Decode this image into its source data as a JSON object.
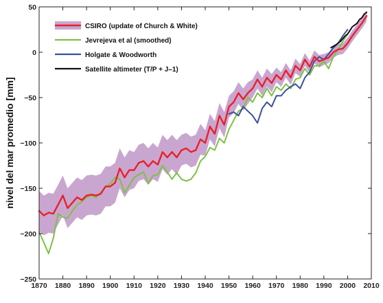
{
  "chart_data": {
    "type": "line",
    "title": "",
    "xlabel": "",
    "ylabel": "nivel del mar promedio [mm]",
    "xlim": [
      1870,
      2010
    ],
    "ylim": [
      -250,
      50
    ],
    "xticks": [
      1870,
      1880,
      1890,
      1900,
      1910,
      1920,
      1930,
      1940,
      1950,
      1960,
      1970,
      1980,
      1990,
      2000,
      2010
    ],
    "yticks": [
      -250,
      -200,
      -150,
      -100,
      -50,
      0,
      50
    ],
    "grid": false,
    "legend_position": "top-left",
    "series": [
      {
        "name": "CSIRO (update of Church & White)",
        "color": "#e8202a",
        "band_color": "#c9a6cf",
        "x": [
          1870,
          1872,
          1874,
          1876,
          1878,
          1880,
          1882,
          1884,
          1886,
          1888,
          1890,
          1892,
          1894,
          1896,
          1898,
          1900,
          1902,
          1904,
          1906,
          1908,
          1910,
          1912,
          1914,
          1916,
          1918,
          1920,
          1922,
          1924,
          1926,
          1928,
          1930,
          1932,
          1934,
          1936,
          1938,
          1940,
          1942,
          1944,
          1946,
          1948,
          1950,
          1952,
          1954,
          1956,
          1958,
          1960,
          1962,
          1964,
          1966,
          1968,
          1970,
          1972,
          1974,
          1976,
          1978,
          1980,
          1982,
          1984,
          1986,
          1988,
          1990,
          1992,
          1994,
          1996,
          1998,
          2000,
          2002,
          2004,
          2006,
          2008
        ],
        "values": [
          -175,
          -180,
          -177,
          -178,
          -168,
          -158,
          -172,
          -166,
          -160,
          -163,
          -158,
          -157,
          -158,
          -156,
          -148,
          -148,
          -144,
          -128,
          -138,
          -130,
          -130,
          -122,
          -120,
          -126,
          -120,
          -124,
          -110,
          -116,
          -110,
          -116,
          -108,
          -106,
          -110,
          -108,
          -96,
          -100,
          -82,
          -90,
          -70,
          -80,
          -60,
          -55,
          -45,
          -52,
          -45,
          -40,
          -30,
          -38,
          -28,
          -34,
          -25,
          -30,
          -20,
          -28,
          -15,
          -20,
          -8,
          -16,
          -5,
          -10,
          -8,
          -6,
          0,
          3,
          4,
          10,
          18,
          25,
          32,
          40
        ],
        "band_half_width": [
          22,
          22,
          22,
          22,
          22,
          22,
          22,
          22,
          22,
          22,
          22,
          22,
          22,
          22,
          22,
          22,
          22,
          22,
          22,
          22,
          20,
          20,
          20,
          20,
          20,
          19,
          19,
          19,
          19,
          19,
          17,
          17,
          17,
          17,
          17,
          14,
          14,
          14,
          14,
          14,
          12,
          12,
          12,
          12,
          12,
          10,
          10,
          10,
          10,
          10,
          8,
          8,
          8,
          8,
          8,
          7,
          7,
          7,
          7,
          7,
          6,
          6,
          6,
          6,
          6,
          6,
          6,
          6,
          6,
          6
        ]
      },
      {
        "name": "Jevrejeva et al (smoothed)",
        "color": "#7cc142",
        "x": [
          1870,
          1872,
          1874,
          1876,
          1878,
          1880,
          1882,
          1884,
          1886,
          1888,
          1890,
          1892,
          1894,
          1896,
          1898,
          1900,
          1902,
          1904,
          1906,
          1908,
          1910,
          1912,
          1914,
          1916,
          1918,
          1920,
          1922,
          1924,
          1926,
          1928,
          1930,
          1932,
          1934,
          1936,
          1938,
          1940,
          1942,
          1944,
          1946,
          1948,
          1950,
          1952,
          1954,
          1956,
          1958,
          1960,
          1962,
          1964,
          1966,
          1968,
          1970,
          1972,
          1974,
          1976,
          1978,
          1980,
          1982,
          1984,
          1986,
          1988,
          1990,
          1992,
          1994,
          1996,
          1998,
          2000
        ],
        "values": [
          -198,
          -210,
          -222,
          -205,
          -178,
          -182,
          -183,
          -175,
          -168,
          -165,
          -160,
          -158,
          -160,
          -155,
          -148,
          -145,
          -138,
          -140,
          -155,
          -147,
          -138,
          -135,
          -132,
          -145,
          -136,
          -135,
          -125,
          -132,
          -140,
          -133,
          -140,
          -142,
          -140,
          -133,
          -120,
          -115,
          -105,
          -108,
          -95,
          -100,
          -85,
          -75,
          -65,
          -62,
          -50,
          -55,
          -45,
          -50,
          -40,
          -48,
          -38,
          -42,
          -35,
          -40,
          -30,
          -28,
          -18,
          -25,
          -15,
          -15,
          -10,
          -18,
          -5,
          3,
          12,
          20
        ]
      },
      {
        "name": "Holgate & Woodworth",
        "color": "#3a4f9c",
        "x": [
          1950,
          1952,
          1954,
          1956,
          1958,
          1960,
          1962,
          1964,
          1966,
          1968,
          1970,
          1972,
          1974,
          1976,
          1978,
          1980,
          1982,
          1984,
          1986,
          1988,
          1990,
          1992,
          1994,
          1996,
          1998,
          2000
        ],
        "values": [
          -68,
          -66,
          -70,
          -60,
          -65,
          -70,
          -78,
          -62,
          -55,
          -60,
          -48,
          -48,
          -42,
          -38,
          -35,
          -40,
          -28,
          -22,
          -10,
          -5,
          -8,
          -2,
          5,
          10,
          18,
          25
        ]
      },
      {
        "name": "Satellite altimeter (T/P + J–1)",
        "color": "#111111",
        "x": [
          1993,
          1995,
          1997,
          1999,
          2000,
          2001,
          2002,
          2003,
          2004,
          2005,
          2006,
          2007,
          2008
        ],
        "values": [
          5,
          8,
          12,
          18,
          20,
          24,
          28,
          30,
          32,
          36,
          38,
          42,
          44
        ]
      }
    ]
  }
}
